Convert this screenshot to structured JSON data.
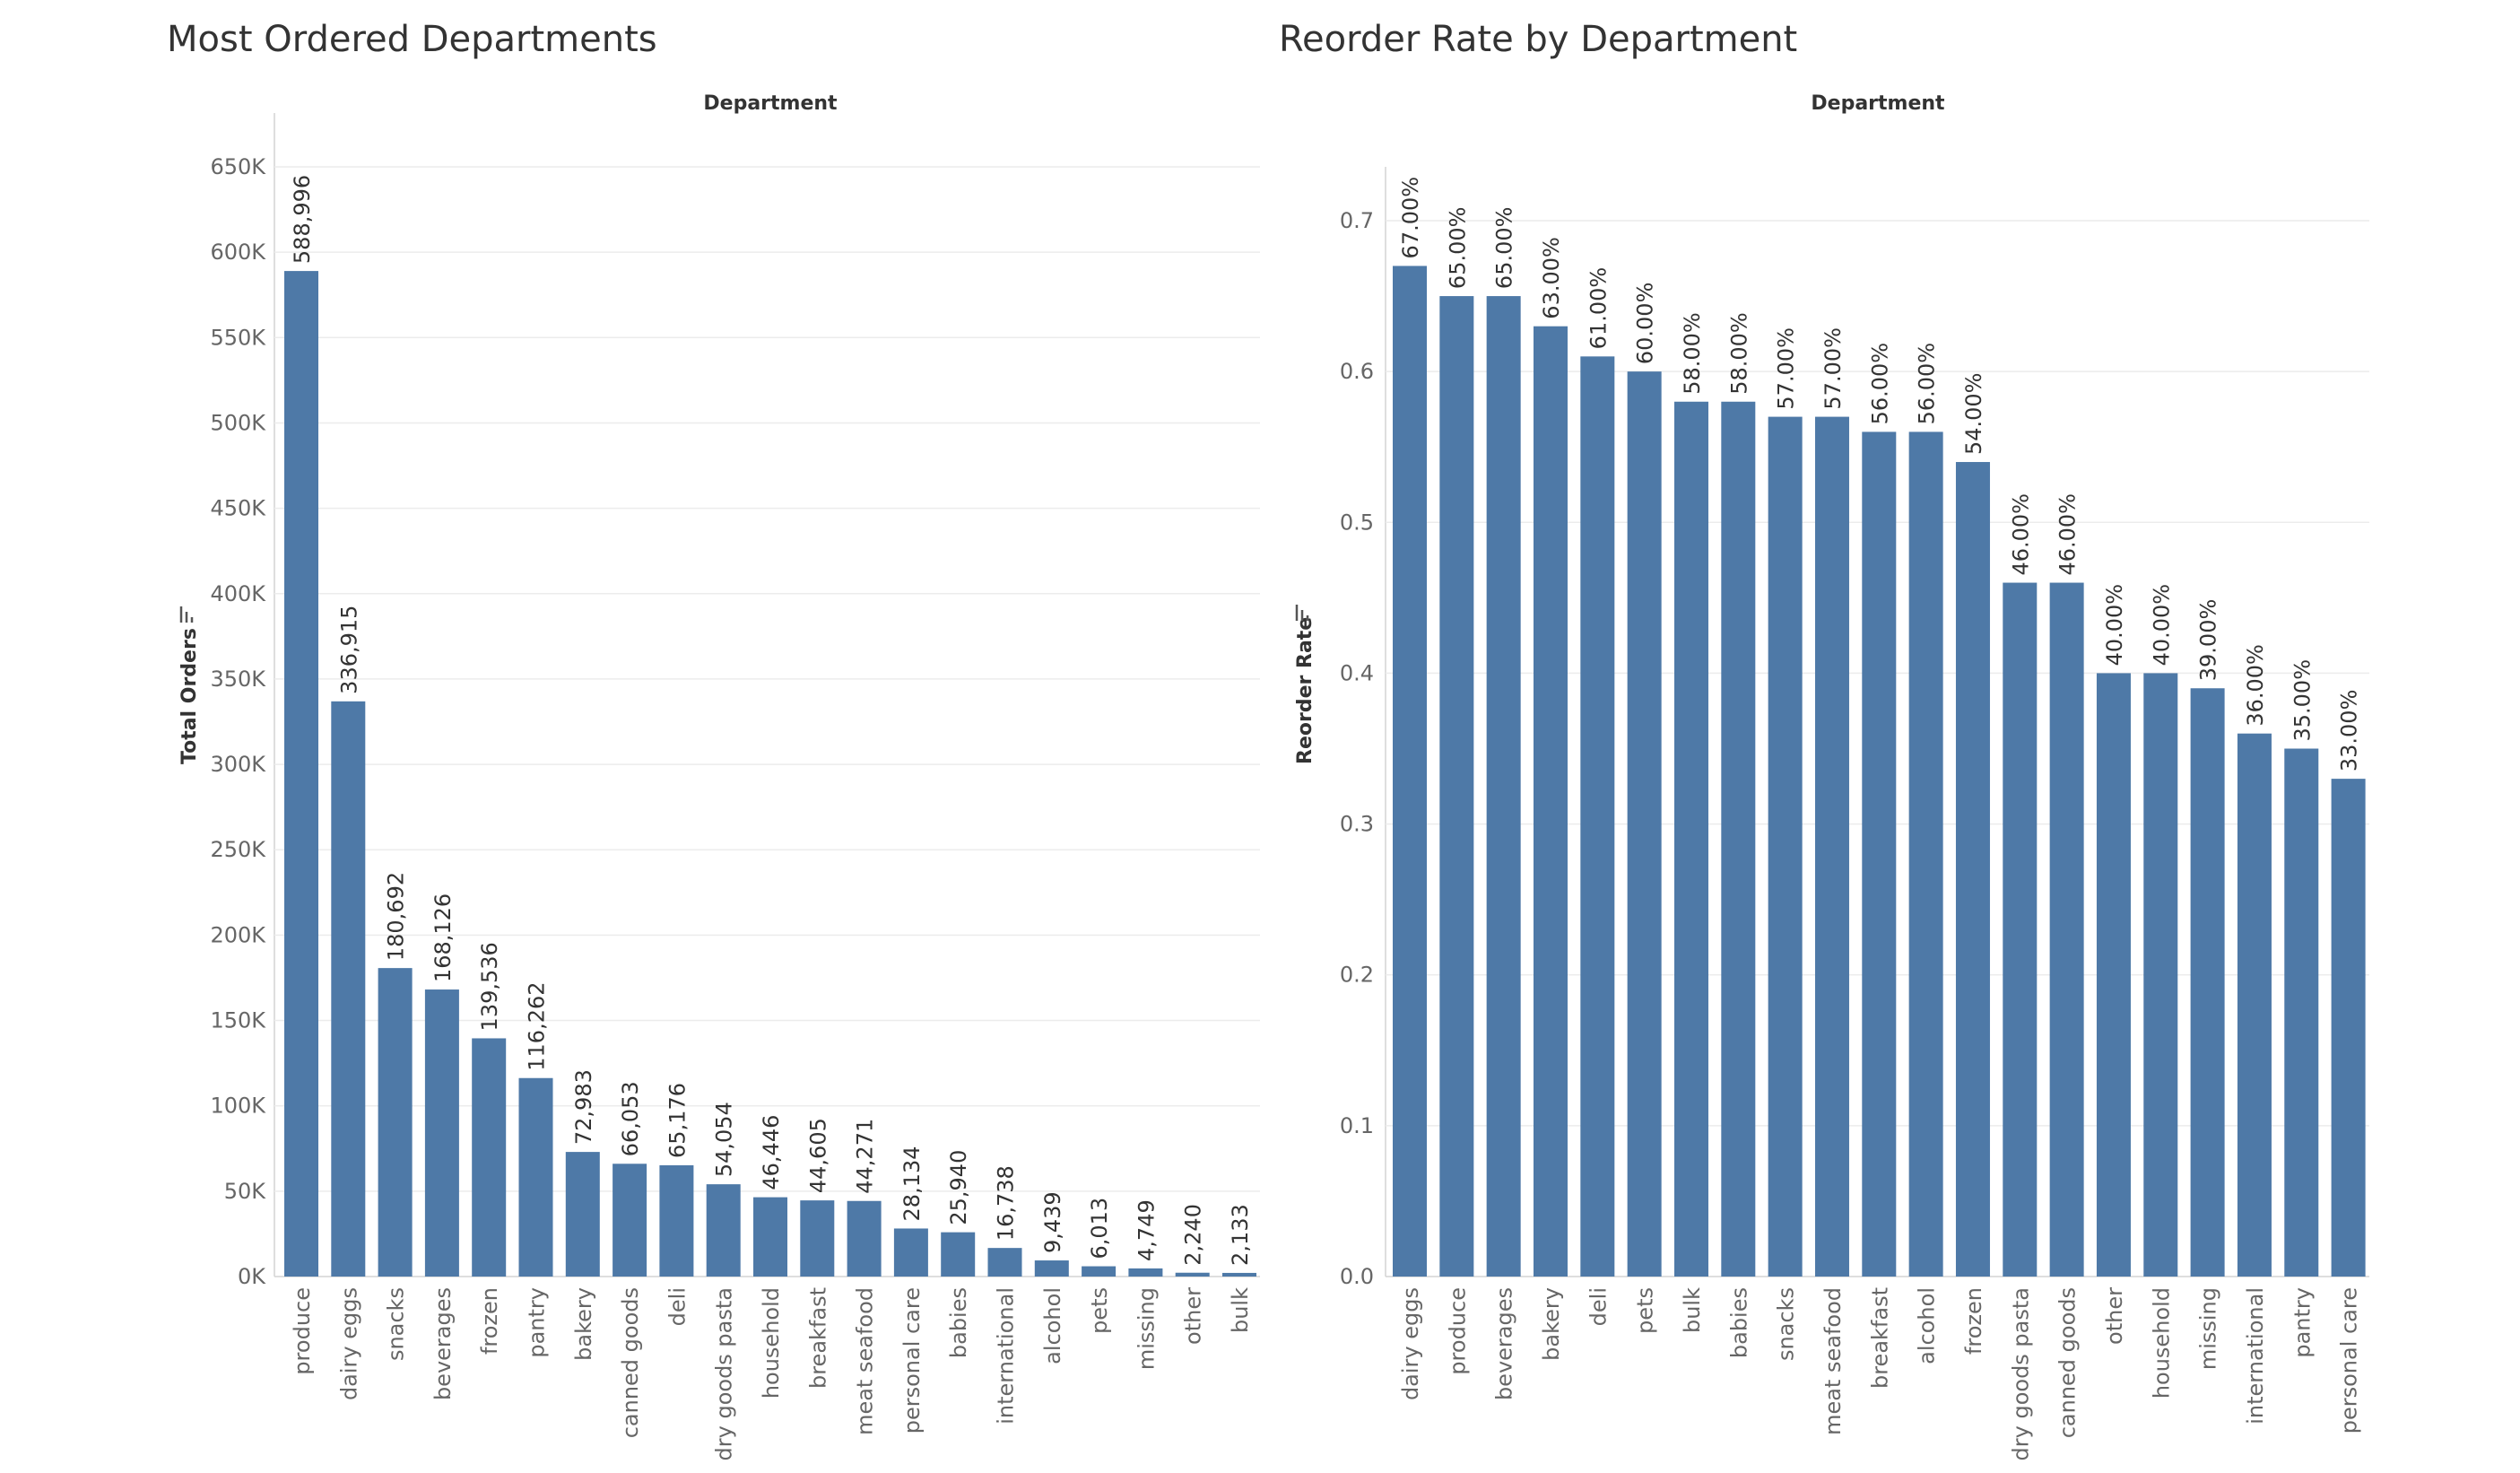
{
  "colors": {
    "bar": "#4e79a7"
  },
  "chart_data": [
    {
      "type": "bar",
      "title": "Most Ordered Departments",
      "xlabel": "Department",
      "ylabel": "Total Orders",
      "ylim": [
        0,
        650000
      ],
      "yticks": [
        0,
        50000,
        100000,
        150000,
        200000,
        250000,
        300000,
        350000,
        400000,
        450000,
        500000,
        550000,
        600000,
        650000
      ],
      "ytick_labels": [
        "0K",
        "50K",
        "100K",
        "150K",
        "200K",
        "250K",
        "300K",
        "350K",
        "400K",
        "450K",
        "500K",
        "550K",
        "600K",
        "650K"
      ],
      "categories": [
        "produce",
        "dairy eggs",
        "snacks",
        "beverages",
        "frozen",
        "pantry",
        "bakery",
        "canned goods",
        "deli",
        "dry goods pasta",
        "household",
        "breakfast",
        "meat seafood",
        "personal care",
        "babies",
        "international",
        "alcohol",
        "pets",
        "missing",
        "other",
        "bulk"
      ],
      "values": [
        588996,
        336915,
        180692,
        168126,
        139536,
        116262,
        72983,
        66053,
        65176,
        54054,
        46446,
        44605,
        44271,
        28134,
        25940,
        16738,
        9439,
        6013,
        4749,
        2240,
        2133
      ],
      "data_labels": [
        "588,996",
        "336,915",
        "180,692",
        "168,126",
        "139,536",
        "116,262",
        "72,983",
        "66,053",
        "65,176",
        "54,054",
        "46,446",
        "44,605",
        "44,271",
        "28,134",
        "25,940",
        "16,738",
        "9,439",
        "6,013",
        "4,749",
        "2,240",
        "2,133"
      ],
      "grid": true
    },
    {
      "type": "bar",
      "title": "Reorder Rate by Department",
      "xlabel": "Department",
      "ylabel": "Reorder Rate",
      "ylim": [
        0,
        0.7
      ],
      "yticks": [
        0,
        0.1,
        0.2,
        0.3,
        0.4,
        0.5,
        0.6,
        0.7
      ],
      "ytick_labels": [
        "0.0",
        "0.1",
        "0.2",
        "0.3",
        "0.4",
        "0.5",
        "0.6",
        "0.7"
      ],
      "categories": [
        "dairy eggs",
        "produce",
        "beverages",
        "bakery",
        "deli",
        "pets",
        "bulk",
        "babies",
        "snacks",
        "meat seafood",
        "breakfast",
        "alcohol",
        "frozen",
        "dry goods pasta",
        "canned goods",
        "other",
        "household",
        "missing",
        "international",
        "pantry",
        "personal care"
      ],
      "values": [
        0.67,
        0.65,
        0.65,
        0.63,
        0.61,
        0.6,
        0.58,
        0.58,
        0.57,
        0.57,
        0.56,
        0.56,
        0.54,
        0.46,
        0.46,
        0.4,
        0.4,
        0.39,
        0.36,
        0.35,
        0.33
      ],
      "data_labels": [
        "67.00%",
        "65.00%",
        "65.00%",
        "63.00%",
        "61.00%",
        "60.00%",
        "58.00%",
        "58.00%",
        "57.00%",
        "57.00%",
        "56.00%",
        "56.00%",
        "54.00%",
        "46.00%",
        "46.00%",
        "40.00%",
        "40.00%",
        "39.00%",
        "36.00%",
        "35.00%",
        "33.00%"
      ],
      "grid": true
    }
  ]
}
